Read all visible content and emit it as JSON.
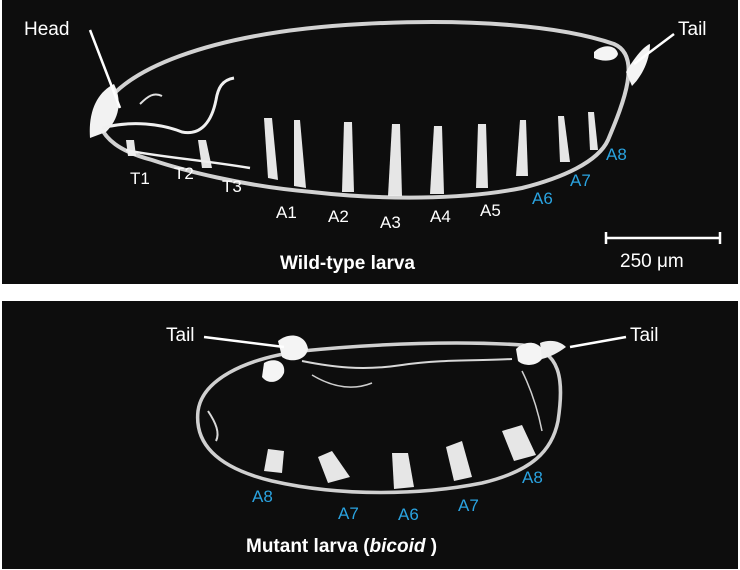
{
  "wild_type": {
    "caption": "Wild-type larva",
    "head_label": "Head",
    "tail_label": "Tail",
    "scale_bar_label": "250 μm",
    "thoracic_segments": [
      "T1",
      "T2",
      "T3"
    ],
    "abdominal_segments_white": [
      "A1",
      "A2",
      "A3",
      "A4",
      "A5"
    ],
    "abdominal_segments_blue": [
      "A6",
      "A7",
      "A8"
    ]
  },
  "mutant": {
    "caption_prefix": "Mutant larva (",
    "caption_italic": "bicoid",
    "caption_suffix": " )",
    "tail_left_label": "Tail",
    "tail_right_label": "Tail",
    "segments": [
      "A8",
      "A7",
      "A6",
      "A7",
      "A8"
    ]
  },
  "colors": {
    "background": "#0d0d0d",
    "label_white": "#ffffff",
    "label_blue": "#2aa3e0"
  }
}
